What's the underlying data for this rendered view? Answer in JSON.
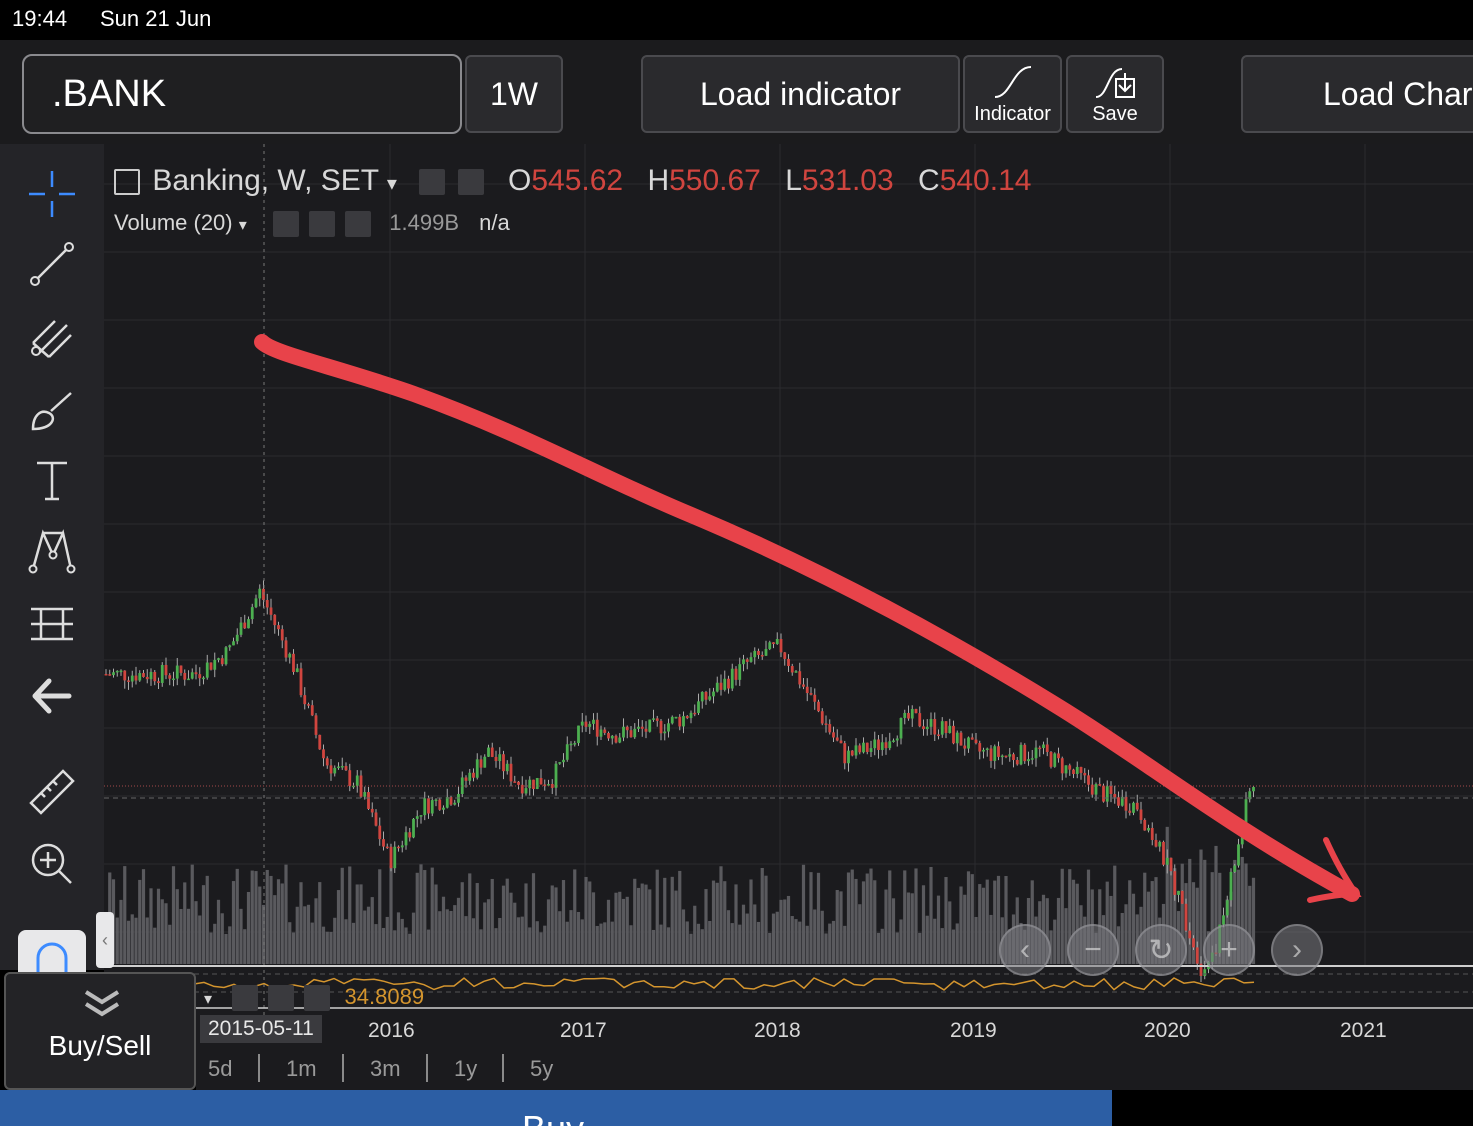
{
  "status": {
    "time": "19:44",
    "date": "Sun 21 Jun"
  },
  "toolbar": {
    "symbol": ".BANK",
    "interval": "1W",
    "load_indicator": "Load indicator",
    "indicator": "Indicator",
    "save": "Save",
    "load_chart": "Load Chart"
  },
  "legend": {
    "title": "Banking, W, SET",
    "o_label": "O",
    "o": "545.62",
    "h_label": "H",
    "h": "550.67",
    "l_label": "L",
    "l": "531.03",
    "c_label": "C",
    "c": "540.14",
    "volume_label": "Volume (20)",
    "volume_value": "1.499B",
    "volume_ma": "n/a",
    "osc_value": "34.8089"
  },
  "time_axis": {
    "cursor_date": "2015-05-11",
    "ticks": [
      "2016",
      "2017",
      "2018",
      "2019",
      "2020",
      "2021"
    ]
  },
  "ranges": [
    "5d",
    "1m",
    "3m",
    "1y",
    "5y"
  ],
  "buysell_label": "Buy/Sell",
  "buy_label": "Buy",
  "colors": {
    "up": "#4caf50",
    "down": "#d0453f",
    "annotation": "#e8434a",
    "osc": "#d4952e"
  },
  "chart_data": {
    "type": "candlestick",
    "title": "Banking, W, SET",
    "x_ticks": [
      "2016",
      "2017",
      "2018",
      "2019",
      "2020",
      "2021"
    ],
    "close_series": [
      {
        "date": "2015-01",
        "value": 640
      },
      {
        "date": "2015-03",
        "value": 660
      },
      {
        "date": "2015-05",
        "value": 715
      },
      {
        "date": "2015-07",
        "value": 650
      },
      {
        "date": "2015-09",
        "value": 560
      },
      {
        "date": "2015-11",
        "value": 540
      },
      {
        "date": "2016-01",
        "value": 470
      },
      {
        "date": "2016-03",
        "value": 520
      },
      {
        "date": "2016-05",
        "value": 530
      },
      {
        "date": "2016-07",
        "value": 570
      },
      {
        "date": "2016-09",
        "value": 540
      },
      {
        "date": "2016-11",
        "value": 545
      },
      {
        "date": "2017-01",
        "value": 595
      },
      {
        "date": "2017-03",
        "value": 585
      },
      {
        "date": "2017-05",
        "value": 590
      },
      {
        "date": "2017-07",
        "value": 600
      },
      {
        "date": "2017-09",
        "value": 625
      },
      {
        "date": "2017-11",
        "value": 650
      },
      {
        "date": "2018-01",
        "value": 665
      },
      {
        "date": "2018-03",
        "value": 615
      },
      {
        "date": "2018-05",
        "value": 565
      },
      {
        "date": "2018-07",
        "value": 575
      },
      {
        "date": "2018-09",
        "value": 600
      },
      {
        "date": "2018-11",
        "value": 590
      },
      {
        "date": "2019-01",
        "value": 570
      },
      {
        "date": "2019-03",
        "value": 565
      },
      {
        "date": "2019-05",
        "value": 570
      },
      {
        "date": "2019-07",
        "value": 550
      },
      {
        "date": "2019-09",
        "value": 530
      },
      {
        "date": "2019-11",
        "value": 520
      },
      {
        "date": "2020-01",
        "value": 460
      },
      {
        "date": "2020-03",
        "value": 370
      },
      {
        "date": "2020-04",
        "value": 400
      },
      {
        "date": "2020-06",
        "value": 540
      }
    ]
  }
}
